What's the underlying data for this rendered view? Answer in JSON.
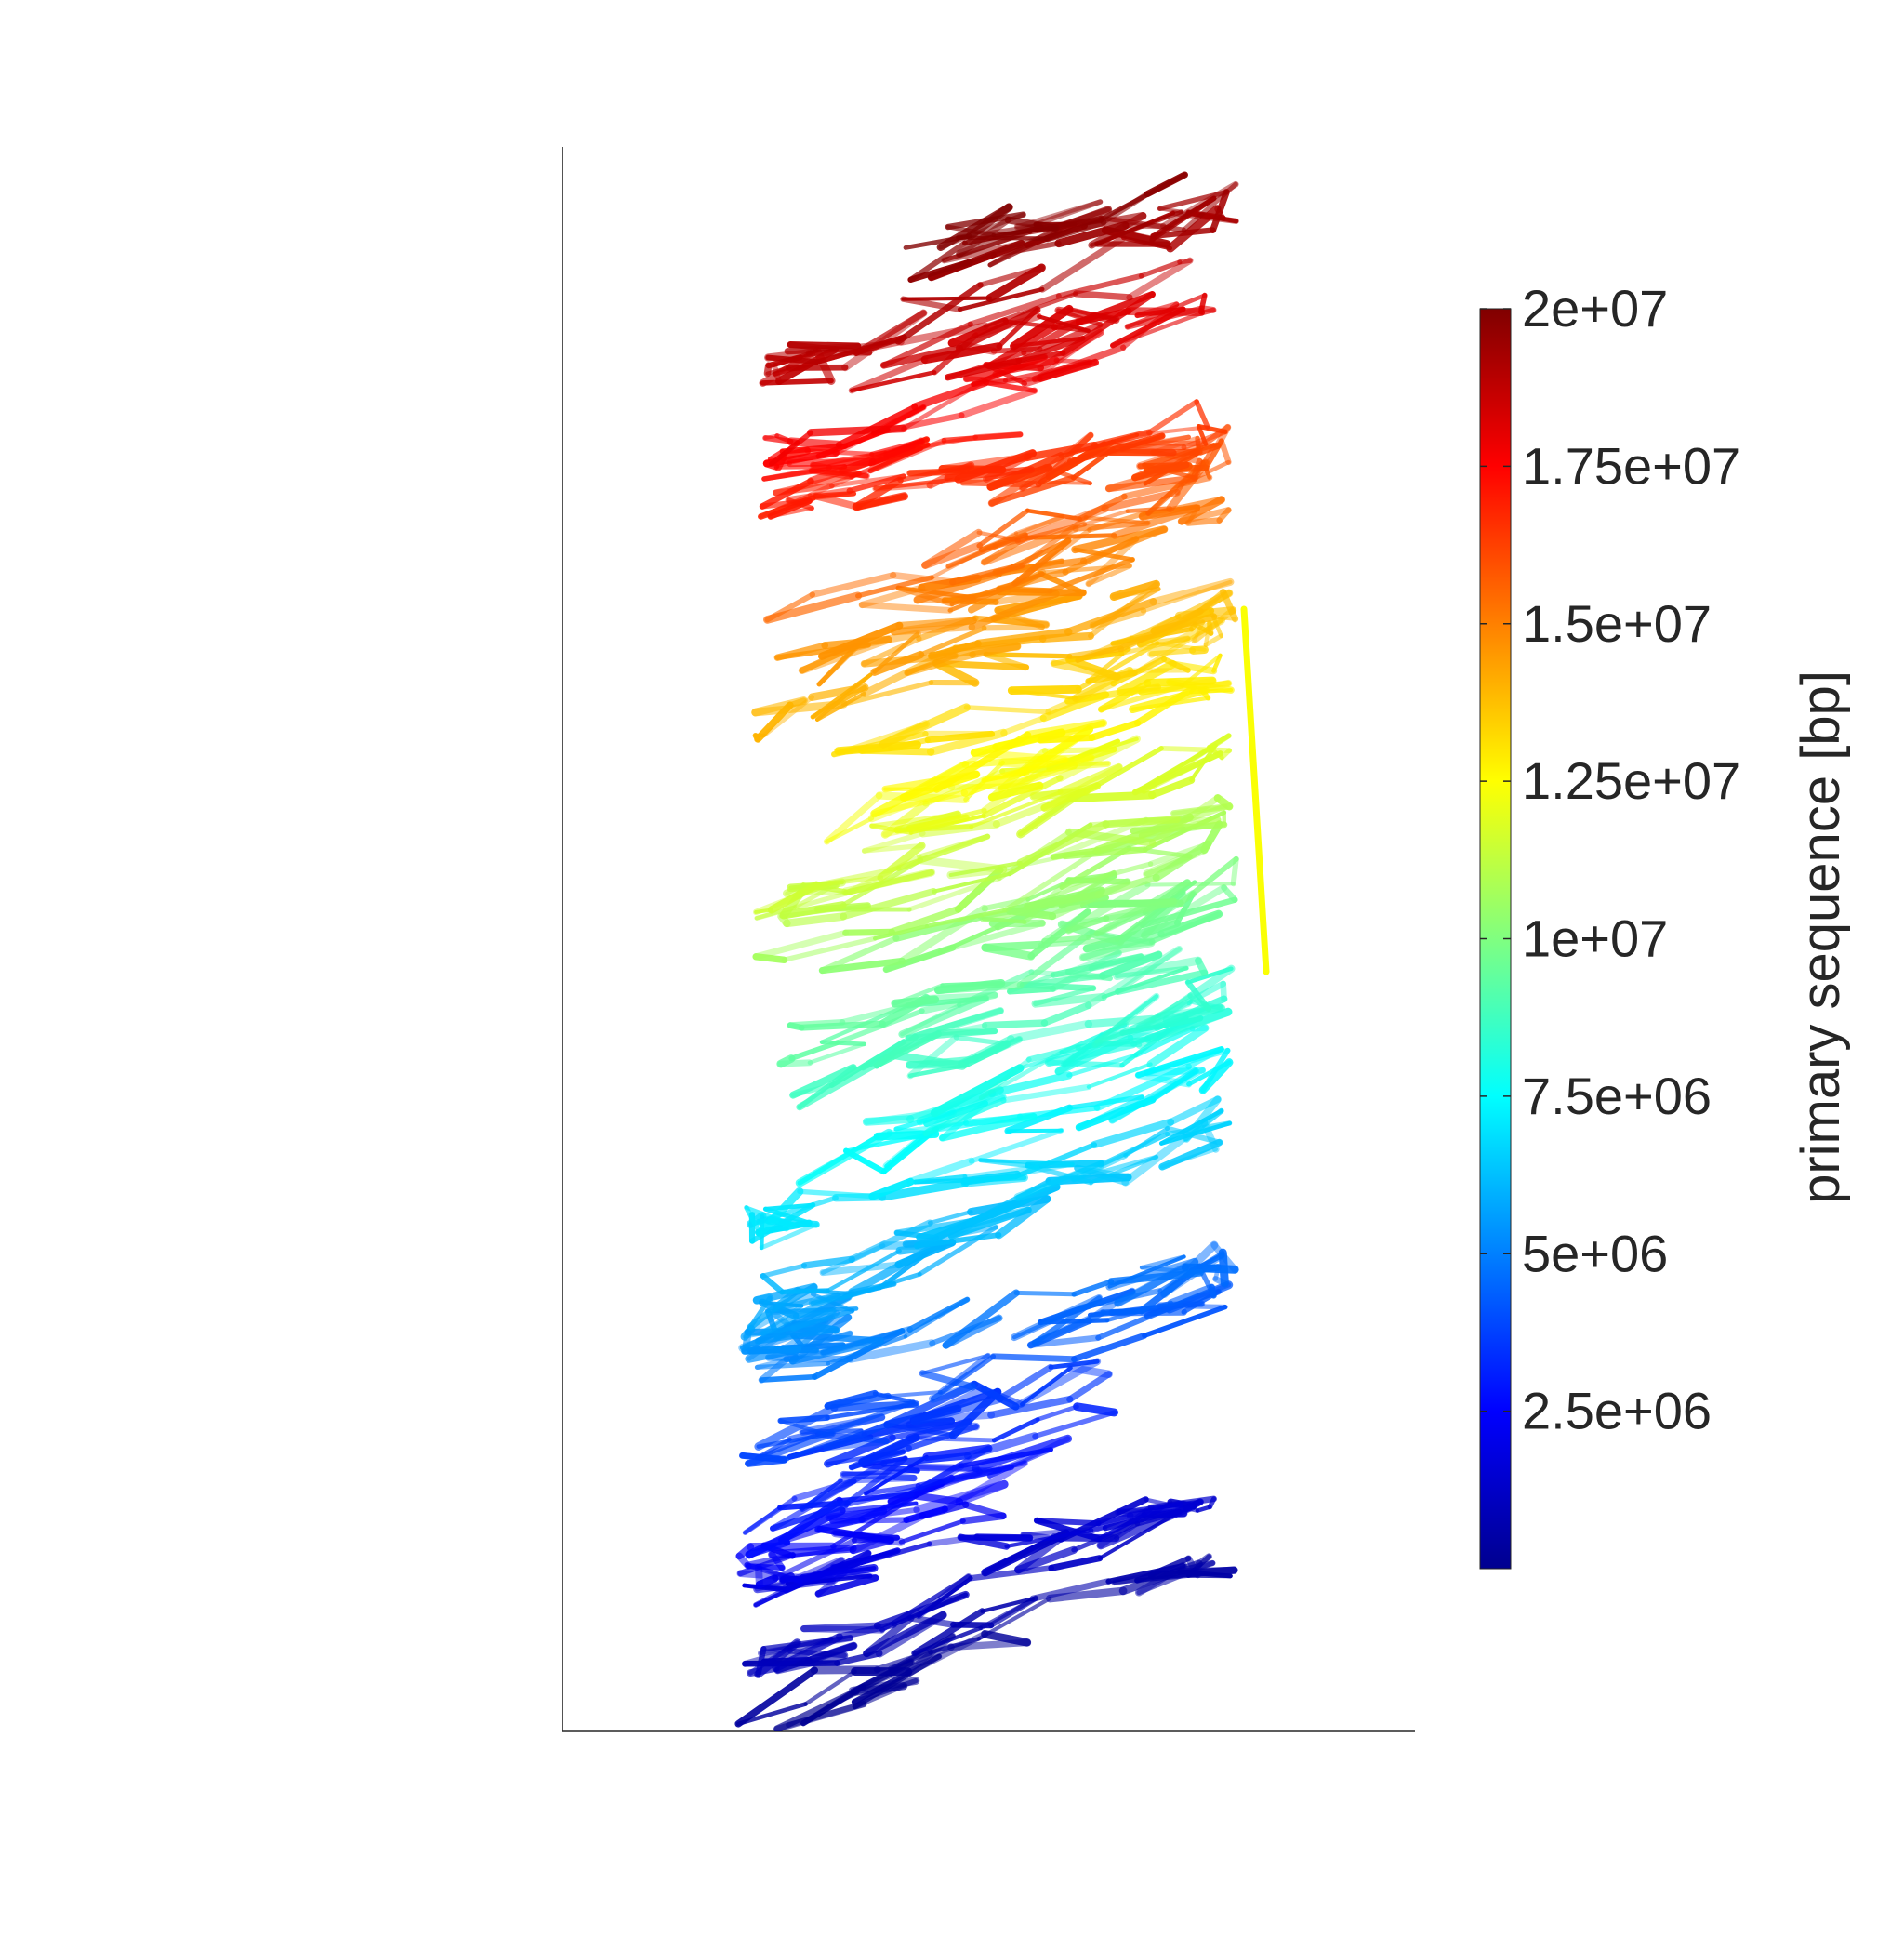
{
  "chart_data": {
    "type": "line",
    "title": "",
    "xlabel": "",
    "ylabel": "",
    "plot_kind": "3D chromatin polymer trace colored by genomic position",
    "axes_ticks": "none",
    "grid": false,
    "series": [
      {
        "name": "",
        "primary_sequence_range_bp": [
          0,
          20000000
        ],
        "colormap": "jet"
      }
    ],
    "colorbar": {
      "label": "primary sequence [bp]",
      "clim": [
        0,
        20000000
      ],
      "ticks": [
        2500000,
        5000000,
        7500000,
        10000000,
        12500000,
        15000000,
        17500000,
        20000000
      ],
      "tick_labels": [
        "2.5e+06",
        "5e+06",
        "7.5e+06",
        "1e+07",
        "1.25e+07",
        "1.5e+07",
        "1.75e+07",
        "2e+07"
      ],
      "colors": [
        "#00008f",
        "#0000ff",
        "#0080ff",
        "#00ffff",
        "#80ff80",
        "#ffff00",
        "#ff8000",
        "#ff0000",
        "#800000"
      ]
    }
  }
}
